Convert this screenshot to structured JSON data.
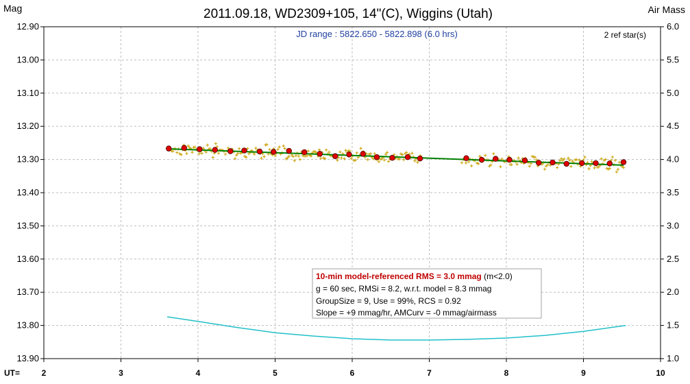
{
  "chart_data": {
    "type": "scatter",
    "title": "2011.09.18, WD2309+105, 14\"(C), Wiggins (Utah)",
    "ylabel": "Mag",
    "y2label": "Air Mass",
    "xlabel": "UT=",
    "jd_range": "JD range : 5822.650 - 5822.898 (6.0 hrs)",
    "ref_stars": "2 ref star(s)",
    "xlim": [
      2,
      10
    ],
    "ylim": [
      13.9,
      12.9
    ],
    "y2lim": [
      1.0,
      6.0
    ],
    "x_ticks": [
      "2",
      "3",
      "4",
      "5",
      "6",
      "7",
      "8",
      "9",
      "10"
    ],
    "y_ticks": [
      "12.90",
      "13.00",
      "13.10",
      "13.20",
      "13.30",
      "13.40",
      "13.50",
      "13.60",
      "13.70",
      "13.80",
      "13.90"
    ],
    "y2_ticks": [
      "6.0",
      "5.5",
      "5.0",
      "4.5",
      "4.0",
      "3.5",
      "3.0",
      "2.5",
      "2.0",
      "1.5",
      "1.0"
    ],
    "grid": true,
    "colors": {
      "raw": "#c8a000",
      "binned": "#e00000",
      "model": "#008000",
      "airmass": "#20c0c8",
      "grid": "#bdbdbd",
      "highlight": "#c00000"
    },
    "series": [
      {
        "type": "binned",
        "x": [
          3.62,
          3.82,
          4.02,
          4.22,
          4.42,
          4.6,
          4.8,
          4.98,
          5.18,
          5.38,
          5.58,
          5.78,
          5.96,
          6.14,
          6.32,
          6.52,
          6.72,
          6.88,
          7.48,
          7.68,
          7.86,
          8.04,
          8.24,
          8.42,
          8.6,
          8.78,
          8.98,
          9.16,
          9.34,
          9.52
        ],
        "y": [
          13.267,
          13.265,
          13.269,
          13.271,
          13.275,
          13.273,
          13.276,
          13.277,
          13.274,
          13.278,
          13.283,
          13.29,
          13.285,
          13.283,
          13.293,
          13.295,
          13.293,
          13.297,
          13.296,
          13.301,
          13.298,
          13.301,
          13.303,
          13.31,
          13.309,
          13.313,
          13.311,
          13.311,
          13.312,
          13.308
        ]
      },
      {
        "type": "model",
        "x": [
          3.62,
          9.52
        ],
        "y": [
          13.268,
          13.317
        ]
      },
      {
        "type": "airmass",
        "x": [
          3.6,
          4.0,
          4.5,
          5.0,
          5.5,
          6.0,
          6.5,
          7.0,
          7.5,
          8.0,
          8.5,
          9.0,
          9.55
        ],
        "y": [
          1.63,
          1.56,
          1.47,
          1.39,
          1.34,
          1.3,
          1.28,
          1.28,
          1.29,
          1.31,
          1.35,
          1.41,
          1.5
        ]
      }
    ],
    "stats_box": {
      "line1_bold": "10-min model-referenced RMS = 3.0 mmag",
      "line1_rest": " (m<2.0)",
      "line2": "g = 60 sec, RMSi = 8.2, w.r.t. model = 8.3 mmag",
      "line3": "GroupSize = 9, Use = 99%, RCS = 0.92",
      "line4": "Slope = +9 mmag/hr, AMCurv = -0 mmag/airmass"
    }
  }
}
